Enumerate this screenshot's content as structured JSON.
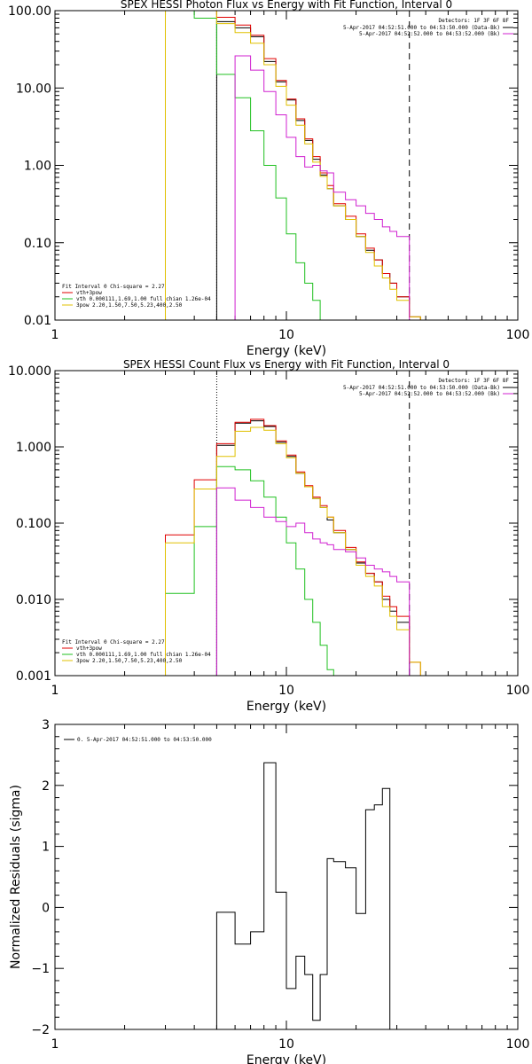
{
  "chart_data": [
    {
      "type": "line",
      "title": "SPEX HESSI Photon Flux vs Energy with Fit Function, Interval 0",
      "xlabel": "Energy (keV)",
      "ylabel": "",
      "xscale": "log",
      "yscale": "log",
      "xlim": [
        1,
        100
      ],
      "ylim": [
        0.01,
        100
      ],
      "xticks": [
        "1",
        "10",
        "100"
      ],
      "yticks": [
        "0.01",
        "0.10",
        "1.00",
        "10.00",
        "100.00"
      ],
      "vlines": [
        {
          "x": 5,
          "style": "dotted"
        },
        {
          "x": 34,
          "style": "dashed"
        }
      ],
      "legend_top": {
        "position": "top-right",
        "header": "Detectors: 1F 3F 6F 8F",
        "entries": [
          {
            "label": "5-Apr-2017 04:52:51.000 to 04:53:50.000 (Data-Bk)",
            "color": "#000000"
          },
          {
            "label": "5-Apr-2017 04:52:52.000 to 04:53:52.000 (Bk)",
            "color": "#d020d0"
          }
        ]
      },
      "legend_bottom": {
        "position": "bottom-left",
        "header": "Fit Interval 0   Chi-square = 2.27",
        "entries": [
          {
            "label": "vth+3pow",
            "color": "#e00000"
          },
          {
            "label": "vth 0.000111,1.69,1.00  full chian 1.26e-04",
            "color": "#20c020"
          },
          {
            "label": "3pow 2.20,1.50,7.50,5.23,400,2.50",
            "color": "#e0c000"
          }
        ]
      },
      "bin_edges": [
        3,
        4,
        5,
        6,
        7,
        8,
        9,
        10,
        11,
        12,
        13,
        14,
        15,
        16,
        18,
        20,
        22,
        24,
        26,
        28,
        30,
        34,
        38
      ],
      "series": [
        {
          "color": "#000000",
          "values": [
            null,
            null,
            72,
            60,
            46,
            22,
            12,
            7,
            3.8,
            2.1,
            1.2,
            0.75,
            0.5,
            0.3,
            0.2,
            0.12,
            0.08,
            0.06,
            0.04,
            0.03,
            0.02,
            0.011
          ]
        },
        {
          "color": "#e00000",
          "values": [
            100,
            100,
            82,
            65,
            48,
            24,
            12.5,
            7.2,
            4.0,
            2.2,
            1.3,
            0.8,
            0.55,
            0.32,
            0.22,
            0.13,
            0.085,
            0.06,
            0.04,
            0.03,
            0.02,
            0.011
          ]
        },
        {
          "color": "#20c020",
          "values": [
            100,
            80,
            15,
            7.5,
            2.8,
            1.0,
            0.38,
            0.13,
            0.055,
            0.03,
            0.018,
            0.01,
            0.006,
            null,
            null,
            null,
            null,
            null,
            null,
            null,
            null,
            null
          ]
        },
        {
          "color": "#e0c000",
          "values": [
            100,
            100,
            68,
            52,
            38,
            20,
            10.5,
            6.0,
            3.3,
            1.9,
            1.1,
            0.72,
            0.5,
            0.3,
            0.2,
            0.12,
            0.075,
            0.05,
            0.035,
            0.025,
            0.018,
            0.011
          ]
        },
        {
          "color": "#d020d0",
          "values": [
            null,
            null,
            null,
            26,
            17,
            9,
            4.5,
            2.3,
            1.3,
            0.95,
            1.0,
            0.85,
            0.8,
            0.45,
            0.36,
            0.3,
            0.24,
            0.2,
            0.16,
            0.14,
            0.12,
            null
          ]
        }
      ]
    },
    {
      "type": "line",
      "title": "SPEX HESSI Count Flux vs Energy with Fit Function, Interval 0",
      "xlabel": "Energy (keV)",
      "ylabel": "",
      "xscale": "log",
      "yscale": "log",
      "xlim": [
        1,
        100
      ],
      "ylim": [
        0.001,
        10
      ],
      "xticks": [
        "1",
        "10",
        "100"
      ],
      "yticks": [
        "0.001",
        "0.010",
        "0.100",
        "1.000",
        "10.000"
      ],
      "vlines": [
        {
          "x": 5,
          "style": "dotted"
        },
        {
          "x": 34,
          "style": "dashed"
        }
      ],
      "legend_top": {
        "position": "top-right",
        "header": "Detectors: 1F 3F 6F 8F",
        "entries": [
          {
            "label": "5-Apr-2017 04:52:51.000 to 04:53:50.000 (Data-Bk)",
            "color": "#000000"
          },
          {
            "label": "5-Apr-2017 04:52:52.000 to 04:53:52.000 (Bk)",
            "color": "#d020d0"
          }
        ]
      },
      "legend_bottom": {
        "position": "bottom-left",
        "header": "Fit Interval 0   Chi-square = 2.27",
        "entries": [
          {
            "label": "vth+3pow",
            "color": "#e00000"
          },
          {
            "label": "vth 0.000111,1.69,1.00  full chian 1.26e-04",
            "color": "#20c020"
          },
          {
            "label": "3pow 2.20,1.50,7.50,5.23,400,2.50",
            "color": "#e0c000"
          }
        ]
      },
      "bin_edges": [
        3,
        4,
        5,
        6,
        7,
        8,
        9,
        10,
        11,
        12,
        13,
        14,
        15,
        16,
        18,
        20,
        22,
        24,
        26,
        28,
        30,
        34,
        38
      ],
      "series": [
        {
          "color": "#000000",
          "values": [
            null,
            null,
            1.05,
            2.05,
            2.2,
            1.85,
            1.15,
            0.75,
            0.45,
            0.3,
            0.21,
            0.16,
            0.11,
            0.075,
            0.045,
            0.03,
            0.022,
            0.017,
            0.01,
            0.007,
            0.005,
            null
          ]
        },
        {
          "color": "#e00000",
          "values": [
            0.07,
            0.37,
            1.1,
            2.1,
            2.3,
            1.9,
            1.2,
            0.78,
            0.47,
            0.31,
            0.22,
            0.17,
            0.12,
            0.08,
            0.048,
            0.031,
            0.022,
            0.017,
            0.011,
            0.008,
            0.006,
            0.0015
          ]
        },
        {
          "color": "#20c020",
          "values": [
            0.012,
            0.09,
            0.55,
            0.5,
            0.36,
            0.22,
            0.12,
            0.055,
            0.025,
            0.01,
            0.005,
            0.0025,
            0.0012,
            null,
            null,
            null,
            null,
            null,
            null,
            null,
            null,
            null
          ]
        },
        {
          "color": "#e0c000",
          "values": [
            0.055,
            0.28,
            0.75,
            1.6,
            1.8,
            1.65,
            1.1,
            0.72,
            0.45,
            0.3,
            0.21,
            0.16,
            0.12,
            0.075,
            0.045,
            0.028,
            0.02,
            0.015,
            0.008,
            0.006,
            0.004,
            0.0015
          ]
        },
        {
          "color": "#d020d0",
          "values": [
            null,
            null,
            0.29,
            0.2,
            0.16,
            0.12,
            0.105,
            0.09,
            0.1,
            0.075,
            0.062,
            0.055,
            0.052,
            0.045,
            0.042,
            0.035,
            0.028,
            0.025,
            0.023,
            0.02,
            0.017,
            null
          ]
        }
      ]
    },
    {
      "type": "line",
      "title": "",
      "xlabel": "Energy (keV)",
      "ylabel": "Normalized Residuals (sigma)",
      "xscale": "log",
      "yscale": "linear",
      "xlim": [
        1,
        100
      ],
      "ylim": [
        -2,
        3
      ],
      "xticks": [
        "1",
        "10",
        "100"
      ],
      "yticks": [
        "−2",
        "−1",
        "0",
        "1",
        "2",
        "3"
      ],
      "vlines": [],
      "legend_top": {
        "position": "top-left",
        "header": "",
        "entries": [
          {
            "label": "0. 5-Apr-2017 04:52:51.000 to 04:53:50.000",
            "color": "#000000"
          }
        ]
      },
      "bin_edges": [
        5,
        6,
        7,
        8,
        9,
        10,
        11,
        12,
        13,
        14,
        15,
        16,
        18,
        20,
        22,
        24,
        26,
        28,
        30,
        34
      ],
      "series": [
        {
          "color": "#000000",
          "values": [
            -0.08,
            -0.6,
            -0.4,
            2.37,
            0.25,
            -1.33,
            -0.8,
            -1.1,
            -1.85,
            -1.1,
            0.8,
            0.75,
            0.65,
            -0.1,
            1.6,
            1.68,
            1.95,
            null,
            null
          ]
        }
      ]
    }
  ]
}
